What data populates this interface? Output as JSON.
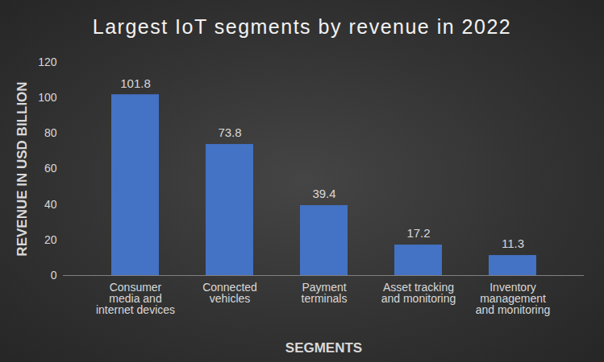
{
  "chart_data": {
    "type": "bar",
    "title": "Largest IoT segments by revenue in 2022",
    "x_label": "SEGMENTS",
    "y_label": "REVENUE IN USD BILLION",
    "categories": [
      "Consumer media and internet devices",
      "Connected vehicles",
      "Payment terminals",
      "Asset tracking and monitoring",
      "Inventory management and monitoring"
    ],
    "values": [
      101.8,
      73.8,
      39.4,
      17.2,
      11.3
    ],
    "color": "#4472c4",
    "ylim": [
      0,
      120
    ],
    "yticks": [
      0,
      20,
      40,
      60,
      80,
      100,
      120
    ],
    "grid": false,
    "data_labels": true
  }
}
